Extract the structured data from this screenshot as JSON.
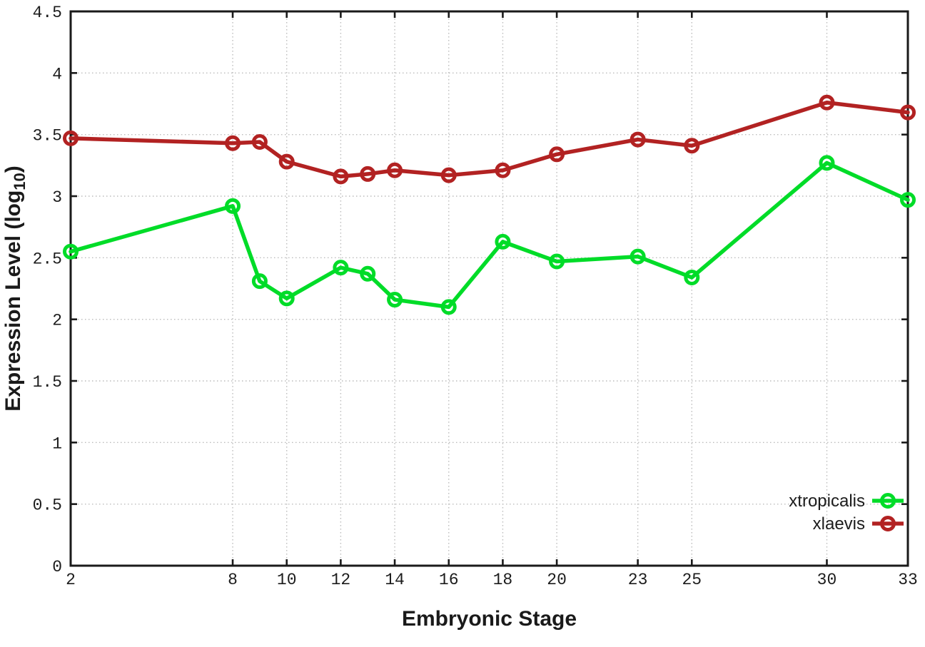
{
  "chart_data": {
    "type": "line",
    "title": "",
    "xlabel": "Embryonic Stage",
    "ylabel": "Expression Level (log10)",
    "ylabel_parts": {
      "main": "Expression Level (log",
      "sub": "10",
      "close": ")"
    },
    "xlim": [
      2,
      33
    ],
    "ylim": [
      0,
      4.5
    ],
    "grid": true,
    "legend_position": "bottom-right",
    "x_tick_labels": [
      "2",
      "8",
      "10",
      "12",
      "14",
      "16",
      "18",
      "20",
      "23",
      "25",
      "30",
      "33"
    ],
    "x_ticks": [
      2,
      8,
      10,
      12,
      14,
      16,
      18,
      20,
      23,
      25,
      30,
      33
    ],
    "y_ticks": [
      0,
      0.5,
      1,
      1.5,
      2,
      2.5,
      3,
      3.5,
      4,
      4.5
    ],
    "y_tick_labels": [
      "0",
      "0.5",
      "1",
      "1.5",
      "2",
      "2.5",
      "3",
      "3.5",
      "4",
      "4.5"
    ],
    "x": [
      2,
      8,
      9,
      10,
      12,
      13,
      14,
      16,
      18,
      20,
      23,
      25,
      30,
      33
    ],
    "series": [
      {
        "name": "xtropicalis",
        "color": "#00dc28",
        "values": [
          2.55,
          2.92,
          2.31,
          2.17,
          2.42,
          2.37,
          2.16,
          2.1,
          2.63,
          2.47,
          2.51,
          2.34,
          3.27,
          2.97
        ]
      },
      {
        "name": "xlaevis",
        "color": "#b22222",
        "values": [
          3.47,
          3.43,
          3.44,
          3.28,
          3.16,
          3.18,
          3.21,
          3.17,
          3.21,
          3.34,
          3.46,
          3.41,
          3.76,
          3.68
        ]
      }
    ],
    "colors": {
      "axis": "#1a1a1a",
      "tick_text": "#1c1c1c",
      "grid": "#bcbcbc",
      "background": "#ffffff"
    }
  }
}
